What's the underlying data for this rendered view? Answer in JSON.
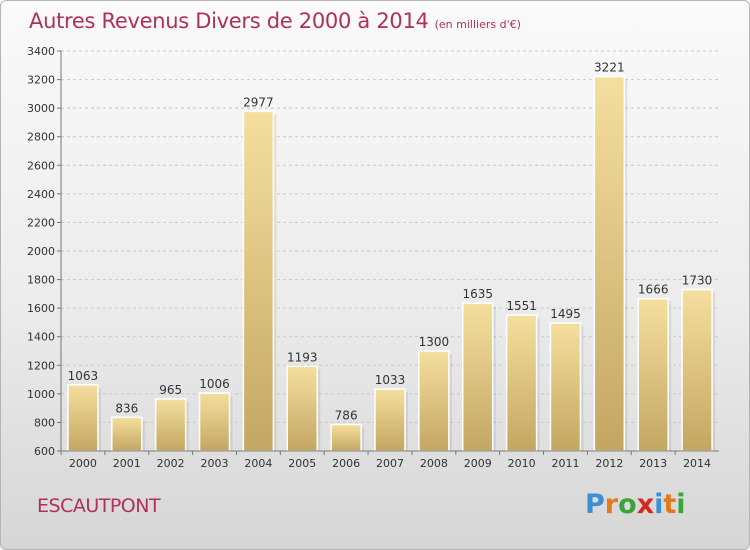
{
  "title": "Autres Revenus Divers de 2000 à 2014",
  "subtitle": "(en milliers d'€)",
  "location": "ESCAUTPONT",
  "logo": {
    "letters": [
      "P",
      "r",
      "o",
      "x",
      "i",
      "t",
      "i"
    ],
    "colors": [
      "#3a8fd6",
      "#e07a1c",
      "#3aa43a",
      "#d6281f",
      "#3a8fd6",
      "#e07a1c",
      "#3aa43a"
    ]
  },
  "chart_data": {
    "type": "bar",
    "categories": [
      "2000",
      "2001",
      "2002",
      "2003",
      "2004",
      "2005",
      "2006",
      "2007",
      "2008",
      "2009",
      "2010",
      "2011",
      "2012",
      "2013",
      "2014"
    ],
    "values": [
      1063,
      836,
      965,
      1006,
      2977,
      1193,
      786,
      1033,
      1300,
      1635,
      1551,
      1495,
      3221,
      1666,
      1730
    ],
    "ylim": [
      600,
      3400
    ],
    "yticks": [
      600,
      800,
      1000,
      1200,
      1400,
      1600,
      1800,
      2000,
      2200,
      2400,
      2600,
      2800,
      3000,
      3200,
      3400
    ],
    "grid": true,
    "bar_color": "#e8cf86"
  }
}
